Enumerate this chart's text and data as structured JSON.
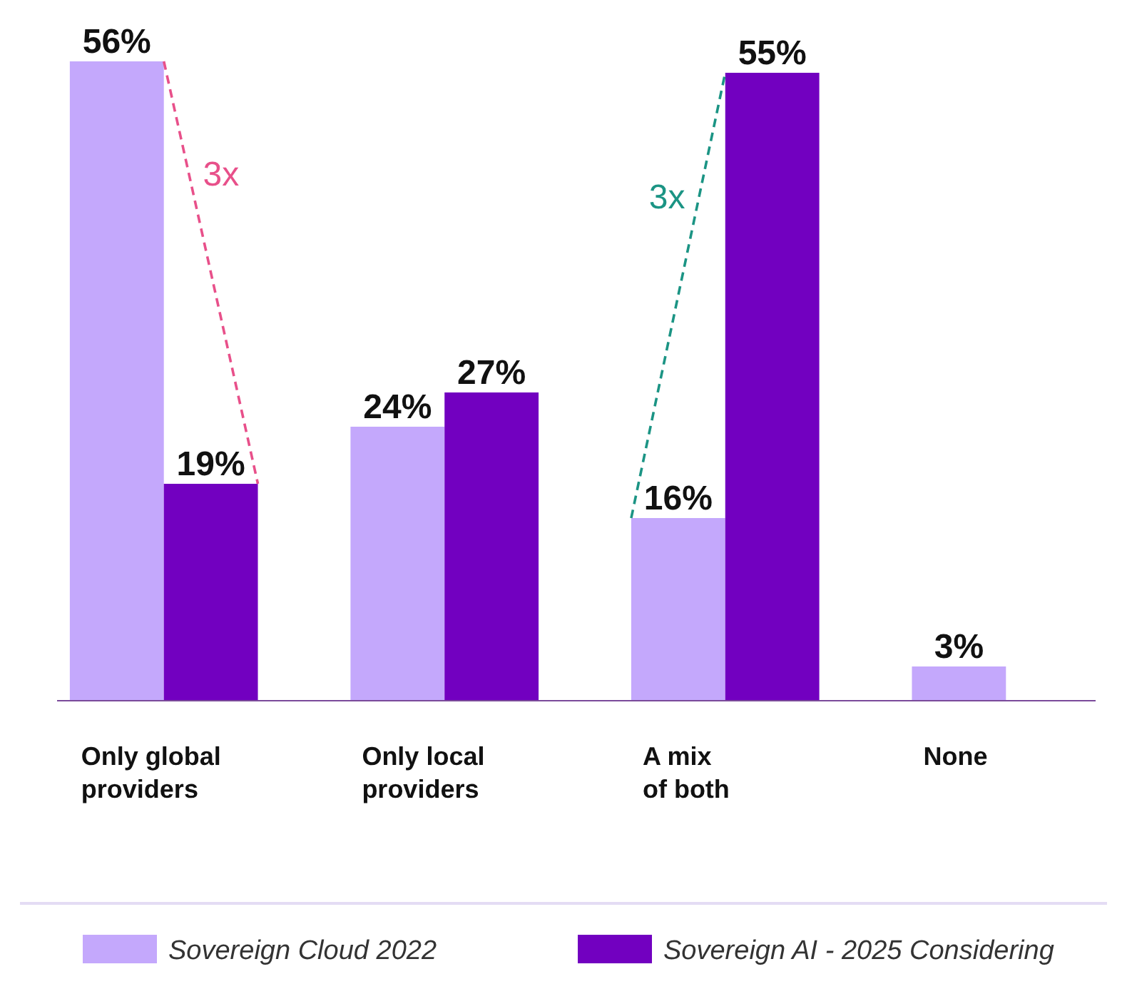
{
  "chart_data": {
    "type": "bar",
    "categories": [
      "Only global\nproviders",
      "Only local\nproviders",
      "A mix\nof both",
      "None"
    ],
    "series": [
      {
        "name": "Sovereign Cloud 2022",
        "color": "#c4a8fc",
        "values": [
          56,
          24,
          16,
          3
        ],
        "value_labels": [
          "56%",
          "24%",
          "16%",
          "3%"
        ]
      },
      {
        "name": "Sovereign AI - 2025 Considering",
        "color": "#7200c0",
        "values": [
          19,
          27,
          55,
          null
        ],
        "value_labels": [
          "19%",
          "27%",
          "55%",
          null
        ]
      }
    ],
    "legend": "bottom",
    "annotations": [
      "3x",
      "3x"
    ]
  }
}
